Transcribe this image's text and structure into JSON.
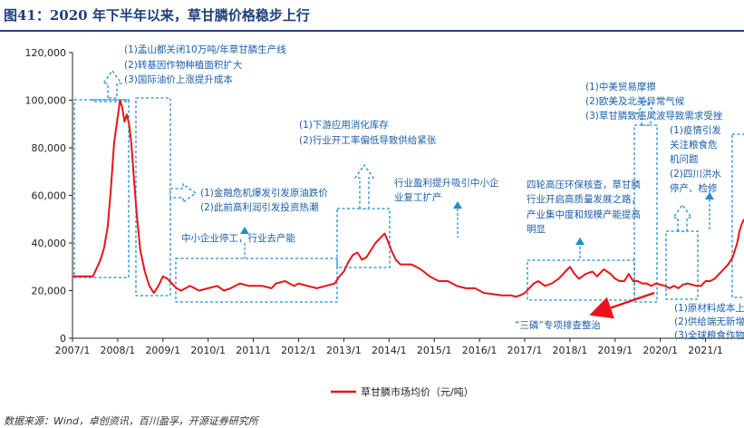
{
  "figure_title": "图41：2020 年下半年以来，草甘膦价格稳步上行",
  "source_note": "数据来源：Wind，卓创资讯，百川盈孚，开源证券研究所",
  "colors": {
    "series": "#e8141a",
    "annotation": "#1b8fd1",
    "title": "#1f3f7a",
    "axis": "#222222"
  },
  "chart_data": {
    "type": "line",
    "title": "",
    "xlabel": "",
    "ylabel": "",
    "xlim": [
      2007.0,
      2021.85
    ],
    "ylim": [
      0,
      120000
    ],
    "grid": false,
    "x_ticks": [
      "2007/1",
      "2008/1",
      "2009/1",
      "2010/1",
      "2011/1",
      "2012/1",
      "2013/1",
      "2014/1",
      "2015/1",
      "2016/1",
      "2017/1",
      "2018/1",
      "2019/1",
      "2020/1",
      "2021/1"
    ],
    "y_ticks": [
      "0",
      "20,000",
      "40,000",
      "60,000",
      "80,000",
      "100,000",
      "120,000"
    ],
    "legend": {
      "label": "草甘膦市场均价（元/吨）",
      "position": "bottom"
    },
    "series": [
      {
        "name": "草甘膦市场均价（元/吨）",
        "x": [
          2007.0,
          2007.45,
          2007.55,
          2007.62,
          2007.7,
          2007.78,
          2007.85,
          2007.92,
          2008.0,
          2008.05,
          2008.1,
          2008.15,
          2008.2,
          2008.25,
          2008.3,
          2008.35,
          2008.42,
          2008.5,
          2008.6,
          2008.7,
          2008.8,
          2008.9,
          2009.0,
          2009.1,
          2009.2,
          2009.3,
          2009.4,
          2009.6,
          2009.8,
          2010.0,
          2010.2,
          2010.35,
          2010.5,
          2010.7,
          2010.9,
          2011.0,
          2011.2,
          2011.4,
          2011.5,
          2011.7,
          2011.9,
          2012.0,
          2012.2,
          2012.4,
          2012.6,
          2012.8,
          2012.9,
          2013.0,
          2013.1,
          2013.2,
          2013.3,
          2013.4,
          2013.5,
          2013.6,
          2013.7,
          2013.8,
          2013.9,
          2013.95,
          2014.05,
          2014.15,
          2014.25,
          2014.35,
          2014.5,
          2014.7,
          2014.9,
          2015.1,
          2015.3,
          2015.5,
          2015.7,
          2015.9,
          2016.1,
          2016.3,
          2016.5,
          2016.7,
          2016.8,
          2016.9,
          2017.0,
          2017.1,
          2017.2,
          2017.3,
          2017.45,
          2017.6,
          2017.75,
          2017.9,
          2018.0,
          2018.1,
          2018.2,
          2018.35,
          2018.5,
          2018.6,
          2018.75,
          2018.9,
          2019.0,
          2019.1,
          2019.2,
          2019.3,
          2019.4,
          2019.5,
          2019.6,
          2019.7,
          2019.8,
          2019.9,
          2020.0,
          2020.1,
          2020.2,
          2020.3,
          2020.4,
          2020.5,
          2020.6,
          2020.7,
          2020.8,
          2020.9,
          2021.0,
          2021.1,
          2021.2,
          2021.3,
          2021.4,
          2021.5,
          2021.6,
          2021.7,
          2021.75,
          2021.8,
          2021.85
        ],
        "values": [
          26000,
          26000,
          30000,
          33000,
          38000,
          47000,
          63000,
          82000,
          93000,
          100000,
          97000,
          91000,
          94000,
          90000,
          82000,
          69000,
          52000,
          37000,
          28000,
          22000,
          19000,
          22000,
          26000,
          25000,
          23000,
          21000,
          20000,
          22000,
          20000,
          21000,
          22000,
          20000,
          21000,
          23000,
          22000,
          22000,
          22000,
          21000,
          23000,
          24000,
          22000,
          23000,
          22000,
          21000,
          22000,
          23000,
          26000,
          28000,
          32000,
          35000,
          36000,
          33000,
          34000,
          37000,
          40000,
          42000,
          44000,
          42000,
          37000,
          33000,
          31000,
          31000,
          31000,
          29000,
          26000,
          24000,
          24000,
          22000,
          21000,
          21000,
          19000,
          18500,
          18000,
          18000,
          17500,
          18000,
          19000,
          21000,
          23000,
          24000,
          22000,
          23000,
          25000,
          28000,
          30000,
          27000,
          25000,
          27000,
          28000,
          26000,
          29000,
          27000,
          25000,
          24000,
          24000,
          27000,
          24000,
          24000,
          23000,
          23000,
          22000,
          23000,
          22500,
          22000,
          21000,
          22000,
          21000,
          22500,
          23000,
          22500,
          22000,
          22000,
          24000,
          24000,
          25000,
          27000,
          29000,
          31000,
          34000,
          40000,
          45000,
          48000,
          50000
        ]
      }
    ],
    "annotations": [
      {
        "id": "a1",
        "lines": [
          "(1)孟山都关闭10万吨/年草甘膦生产线",
          "(2)转基因作物种植面积扩大",
          "(3)国际油价上涨提升成本"
        ]
      },
      {
        "id": "a2",
        "lines": [
          "(1)金融危机爆发引发原油跌价",
          "(2)此前高利润引发投资热潮"
        ]
      },
      {
        "id": "a3",
        "lines": [
          "中小企业停工，行业去产能"
        ]
      },
      {
        "id": "a4",
        "lines": [
          "(1)下游应用消化库存",
          "(2)行业开工率偏低导致供给紧张"
        ]
      },
      {
        "id": "a5",
        "lines": [
          "行业盈利提升吸引中小企",
          "业复工扩产"
        ]
      },
      {
        "id": "a6",
        "lines": [
          "四轮高压环保核查，草甘膦",
          "行业开启高质量发展之路，",
          "产业集中度和规模产能提高",
          "明显"
        ]
      },
      {
        "id": "a7",
        "lines": [
          "(1)中美贸易摩擦",
          "(2)欧美及北美异常气候",
          "(3)草甘膦致癌风波导致需求受挫"
        ]
      },
      {
        "id": "a8",
        "lines": [
          "(1)疫情引发",
          "关注粮食危",
          "机问题",
          "(2)四川洪水",
          "停产、检修"
        ]
      },
      {
        "id": "a9",
        "lines": [
          "“三磷”专项排查整治"
        ]
      },
      {
        "id": "a10",
        "lines": [
          "(1)原材料成本上",
          "(2)供给端无新增",
          "(3)全球粮食作物"
        ]
      }
    ]
  }
}
